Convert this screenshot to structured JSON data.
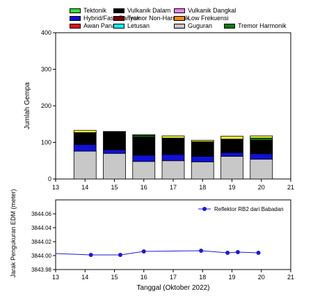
{
  "chart_data": [
    {
      "type": "bar",
      "stacked": true,
      "ylabel": "Jumlah Gempa",
      "xlim": [
        13,
        21
      ],
      "ylim": [
        0,
        400
      ],
      "xticks": [
        "13",
        "14",
        "15",
        "16",
        "17",
        "18",
        "19",
        "20",
        "21"
      ],
      "yticks": [
        "0",
        "100",
        "200",
        "300",
        "400"
      ],
      "categories": [
        14,
        15,
        16,
        17,
        18,
        19,
        20
      ],
      "series": [
        {
          "name": "Guguran",
          "color": "#c8c8c8",
          "values": [
            76,
            70,
            48,
            50,
            47,
            62,
            54
          ]
        },
        {
          "name": "Hybrid/Fase Banyak",
          "color": "#1010d8",
          "values": [
            18,
            10,
            17,
            17,
            15,
            10,
            15
          ]
        },
        {
          "name": "Vulkanik Dalam",
          "color": "#000000",
          "values": [
            33,
            50,
            50,
            45,
            40,
            37,
            37
          ]
        },
        {
          "name": "Tremor Harmonik",
          "color": "#0c7a0c",
          "values": [
            0,
            0,
            4,
            0,
            0,
            0,
            6
          ]
        },
        {
          "name": "Tektonik",
          "color": "#33e033",
          "values": [
            0,
            0,
            2,
            0,
            0,
            0,
            0
          ]
        },
        {
          "name": "Low Frekuensi",
          "color": "#f08c1e",
          "values": [
            0,
            0,
            0,
            0,
            0,
            0,
            0
          ]
        },
        {
          "name": "Awan Panas",
          "color": "#e01010",
          "values": [
            0,
            0,
            0,
            0,
            0,
            0,
            0
          ]
        },
        {
          "name": "Letusan",
          "color": "#10f0f0",
          "values": [
            0,
            0,
            0,
            0,
            0,
            0,
            0
          ]
        },
        {
          "name": "Vulkanik Dangkal",
          "color": "#f080f0",
          "values": [
            0,
            0,
            0,
            0,
            0,
            0,
            0
          ]
        },
        {
          "name": "Tremor Non-Harmonik",
          "color": "#7a0010",
          "values": [
            0,
            0,
            0,
            0,
            0,
            0,
            0
          ]
        },
        {
          "name": "",
          "color": "#f5f53a",
          "values": [
            6,
            0,
            0,
            6,
            4,
            8,
            6
          ]
        }
      ],
      "legend": {
        "placement": "top",
        "rows": [
          [
            "Tektonik",
            "Vulkanik Dalam",
            "Vulkanik Dangkal"
          ],
          [
            "Hybrid/Fase Banyak",
            "Tremor Non-Harmonik",
            "Low Frekuensi"
          ],
          [
            "Awan Panas",
            "Letusan",
            "Guguran",
            "Tremor Harmonik"
          ]
        ]
      }
    },
    {
      "type": "line",
      "xlabel": "Tanggal (Oktober 2022)",
      "ylabel": "Jarak Pengukuran EDM (meter)",
      "xlim": [
        13,
        21
      ],
      "ylim": [
        3843.98,
        3844.08
      ],
      "xticks": [
        "13",
        "14",
        "15",
        "16",
        "17",
        "18",
        "19",
        "20",
        "21"
      ],
      "yticks": [
        "3843.98",
        "3844.00",
        "3844.02",
        "3844.04",
        "3844.06"
      ],
      "series": [
        {
          "name": "Reflektor RB2 dari Babadan",
          "color": "#1a1ad6",
          "x": [
            12.8,
            14.2,
            15.2,
            16.0,
            17.95,
            18.85,
            19.2,
            19.9
          ],
          "y": [
            3844.003,
            3844.001,
            3844.001,
            3844.006,
            3844.007,
            3844.004,
            3844.005,
            3844.004
          ]
        }
      ],
      "legend": {
        "placement": "top-right"
      }
    }
  ]
}
